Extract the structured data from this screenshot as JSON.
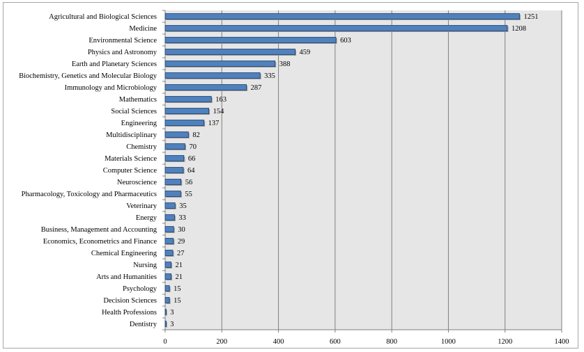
{
  "chart_data": {
    "type": "bar",
    "orientation": "horizontal",
    "categories": [
      "Agricultural and Biological Sciences",
      "Medicine",
      "Environmental Science",
      "Physics and Astronomy",
      "Earth and Planetary Sciences",
      "Biochemistry, Genetics and Molecular Biology",
      "Immunology and Microbiology",
      "Mathematics",
      "Social Sciences",
      "Engineering",
      "Multidisciplinary",
      "Chemistry",
      "Materials Science",
      "Computer Science",
      "Neuroscience",
      "Pharmacology, Toxicology and Pharmaceutics",
      "Veterinary",
      "Energy",
      "Business, Management and Accounting",
      "Economics, Econometrics and Finance",
      "Chemical Engineering",
      "Nursing",
      "Arts and Humanities",
      "Psychology",
      "Decision Sciences",
      "Health Professions",
      "Dentistry"
    ],
    "values": [
      1251,
      1208,
      603,
      459,
      388,
      335,
      287,
      163,
      154,
      137,
      82,
      70,
      66,
      64,
      56,
      55,
      35,
      33,
      30,
      29,
      27,
      21,
      21,
      15,
      15,
      3,
      3
    ],
    "value_labels": [
      "1251",
      "1208",
      "603",
      "459",
      "388",
      "335",
      "287",
      "163",
      "154",
      "137",
      "82",
      "70",
      "66",
      "64",
      "56",
      "55",
      "35",
      "33",
      "30",
      "29",
      "27",
      "21",
      "21",
      "15",
      "15",
      "3",
      "3"
    ],
    "xlim": [
      0,
      1400
    ],
    "xticks": [
      "0",
      "200",
      "400",
      "600",
      "800",
      "1000",
      "1200",
      "1400"
    ],
    "grid": "vertical",
    "legend": "none",
    "colors": {
      "bar": "#4f81bd",
      "bar_edge": "#1f3f6e",
      "plot_background": "#e6e6e6",
      "gridline": "#7f7f7f"
    }
  }
}
